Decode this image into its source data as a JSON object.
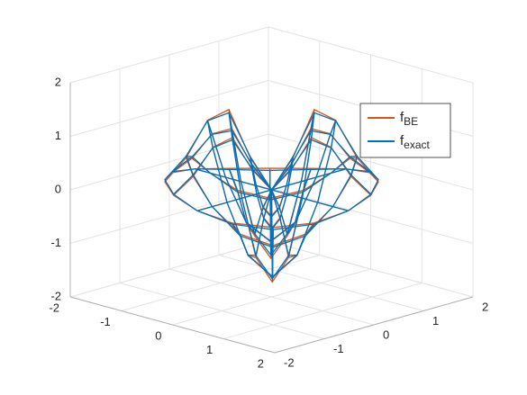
{
  "chart_data": {
    "type": "mesh3d",
    "xlim": [
      -2,
      2
    ],
    "ylim": [
      -2,
      2
    ],
    "zlim": [
      -2,
      2
    ],
    "xticks": [
      -2,
      -1,
      0,
      1,
      2
    ],
    "yticks": [
      -2,
      -1,
      0,
      1,
      2
    ],
    "zticks": [
      -2,
      -1,
      0,
      1,
      2
    ],
    "grid": true,
    "legend": "upper-right",
    "r": [
      0,
      0.3,
      0.6,
      0.9,
      1.2,
      1.5
    ],
    "theta": [
      0,
      22.5,
      45,
      67.5,
      90,
      112.5,
      135,
      157.5,
      180,
      202.5,
      225,
      247.5,
      270,
      292.5,
      315,
      337.5
    ],
    "series": [
      {
        "name": "f",
        "name_subscript": "BE",
        "color": "#d95319",
        "z": [
          [
            0,
            0,
            0,
            0,
            0,
            0,
            0,
            0,
            0,
            0,
            0,
            0,
            0,
            0,
            0,
            0
          ],
          [
            0,
            0.42,
            0.6,
            0.42,
            0,
            -0.42,
            -0.6,
            -0.42,
            0,
            0.42,
            0.6,
            0.42,
            0,
            -0.42,
            -0.6,
            -0.42
          ],
          [
            0,
            1.06,
            1.5,
            1.06,
            0,
            -1.06,
            -1.5,
            -1.06,
            0,
            1.06,
            1.5,
            1.06,
            0,
            -1.06,
            -1.5,
            -1.06
          ],
          [
            0,
            0.92,
            1.3,
            0.92,
            0,
            -0.92,
            -1.3,
            -0.92,
            0,
            0.92,
            1.3,
            0.92,
            0,
            -0.92,
            -1.3,
            -0.92
          ],
          [
            0,
            0.42,
            0.6,
            0.42,
            0,
            -0.42,
            -0.6,
            -0.42,
            0,
            0.42,
            0.6,
            0.42,
            0,
            -0.42,
            -0.6,
            -0.42
          ],
          [
            0,
            0.11,
            0.15,
            0.11,
            0,
            -0.11,
            -0.15,
            -0.11,
            0,
            0.11,
            0.15,
            0.11,
            0,
            -0.11,
            -0.15,
            -0.11
          ]
        ]
      },
      {
        "name": "f",
        "name_subscript": "exact",
        "color": "#0072bd",
        "z": [
          [
            0,
            0,
            0,
            0,
            0,
            0,
            0,
            0,
            0,
            0,
            0,
            0,
            0,
            0,
            0,
            0
          ],
          [
            0,
            0.44,
            0.62,
            0.44,
            0,
            -0.44,
            -0.62,
            -0.44,
            0,
            0.44,
            0.62,
            0.44,
            0,
            -0.44,
            -0.62,
            -0.44
          ],
          [
            0,
            1.02,
            1.44,
            1.02,
            0,
            -1.02,
            -1.44,
            -1.02,
            0,
            1.02,
            1.44,
            1.02,
            0,
            -1.02,
            -1.44,
            -1.02
          ],
          [
            0,
            0.91,
            1.29,
            0.91,
            0,
            -0.91,
            -1.29,
            -0.91,
            0,
            0.91,
            1.29,
            0.91,
            0,
            -0.91,
            -1.29,
            -0.91
          ],
          [
            0,
            0.45,
            0.63,
            0.45,
            0,
            -0.45,
            -0.63,
            -0.45,
            0,
            0.45,
            0.63,
            0.45,
            0,
            -0.45,
            -0.63,
            -0.45
          ],
          [
            0,
            0.13,
            0.19,
            0.13,
            0,
            -0.13,
            -0.19,
            -0.13,
            0,
            0.13,
            0.19,
            0.13,
            0,
            -0.13,
            -0.19,
            -0.13
          ]
        ]
      }
    ]
  }
}
